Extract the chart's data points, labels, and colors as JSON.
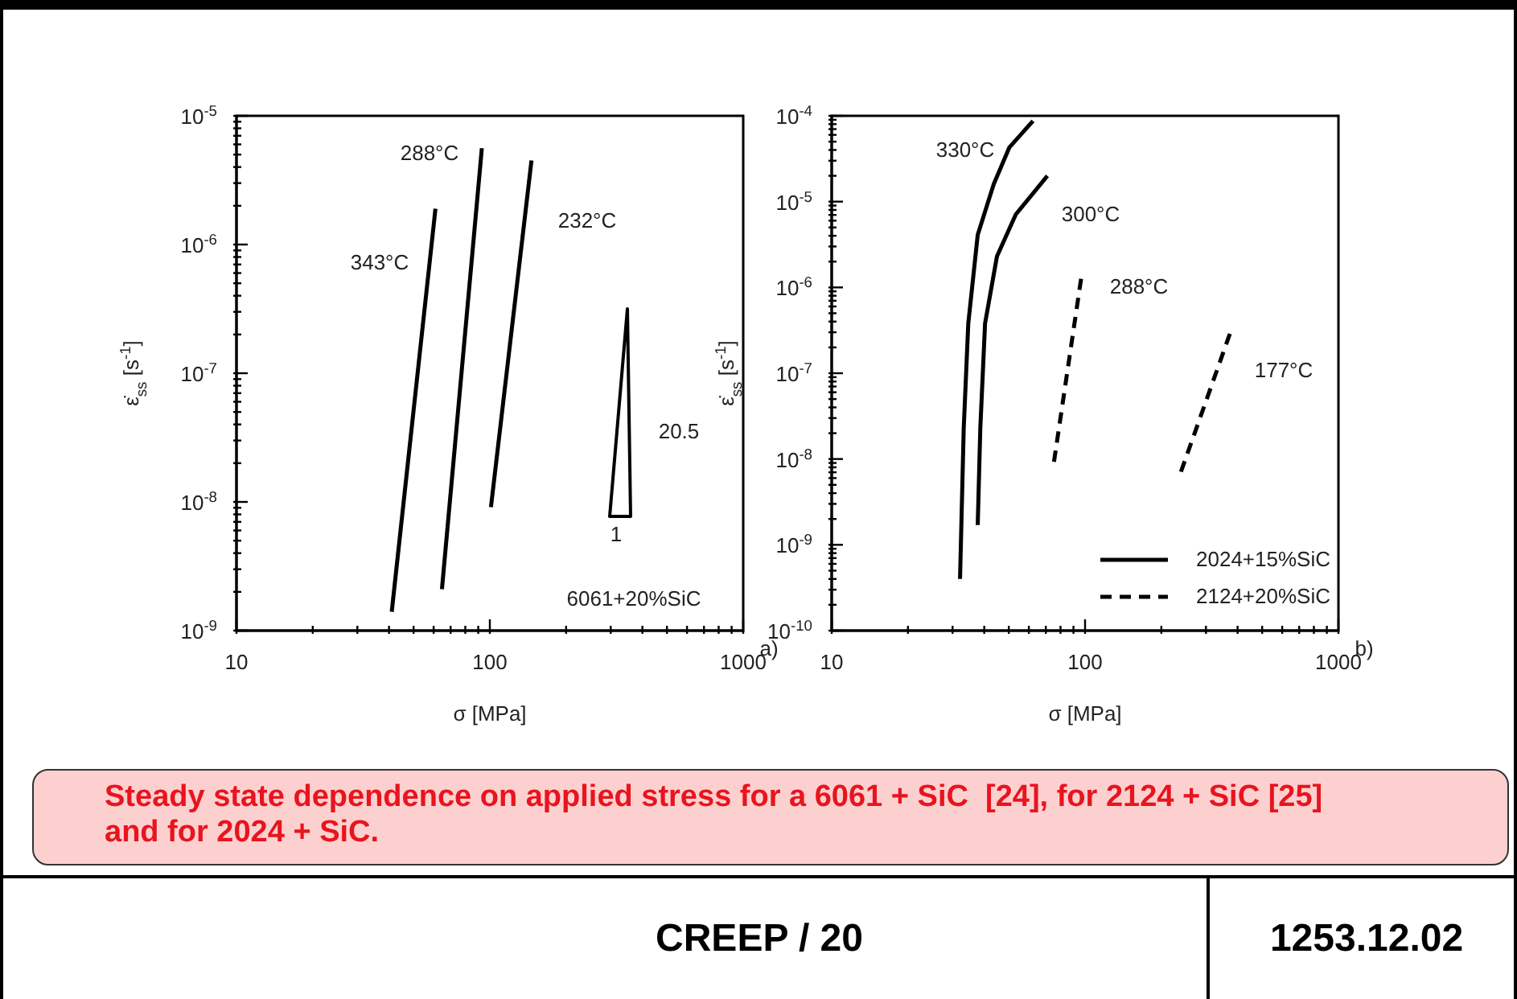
{
  "chart_data": [
    {
      "type": "line",
      "xlabel": "σ [MPa]",
      "ylabel": "ε̇$_{ss}$ [s$^{-1}$]",
      "log": "xy",
      "xlim": [
        10,
        1000
      ],
      "ylim": [
        1e-09,
        1e-05
      ],
      "xticks": [
        10,
        {
          "value": 20,
          "label": null
        },
        {
          "value": 30,
          "label": null
        },
        {
          "value": 40,
          "label": null
        },
        {
          "value": 50,
          "label": null
        },
        {
          "value": 60,
          "label": null
        },
        {
          "value": 70,
          "label": null
        },
        {
          "value": 80,
          "label": null
        },
        {
          "value": 90,
          "label": null
        },
        100,
        {
          "value": 200,
          "label": null
        },
        {
          "value": 300,
          "label": null
        },
        {
          "value": 400,
          "label": null
        },
        {
          "value": 500,
          "label": null
        },
        {
          "value": 600,
          "label": null
        },
        {
          "value": 700,
          "label": null
        },
        {
          "value": 800,
          "label": null
        },
        {
          "value": 900,
          "label": null
        },
        1000
      ],
      "yticks": [
        {
          "value": 1e-09,
          "label": "10$^{-9}$"
        },
        {
          "value": 2e-09,
          "label": null
        },
        {
          "value": 3e-09,
          "label": null
        },
        {
          "value": 4e-09,
          "label": null
        },
        {
          "value": 5e-09,
          "label": null
        },
        {
          "value": 6e-09,
          "label": null
        },
        {
          "value": 7e-09,
          "label": null
        },
        {
          "value": 8e-09,
          "label": null
        },
        {
          "value": 9e-09,
          "label": null
        },
        {
          "value": 1e-08,
          "label": "10$^{-8}$"
        },
        {
          "value": 2e-08,
          "label": null
        },
        {
          "value": 3e-08,
          "label": null
        },
        {
          "value": 4e-08,
          "label": null
        },
        {
          "value": 5e-08,
          "label": null
        },
        {
          "value": 6e-08,
          "label": null
        },
        {
          "value": 7e-08,
          "label": null
        },
        {
          "value": 8e-08,
          "label": null
        },
        {
          "value": 9e-08,
          "label": null
        },
        {
          "value": 1e-07,
          "label": "10$^{-7}$"
        },
        {
          "value": 2e-07,
          "label": null
        },
        {
          "value": 3e-07,
          "label": null
        },
        {
          "value": 4e-07,
          "label": null
        },
        {
          "value": 5e-07,
          "label": null
        },
        {
          "value": 6e-07,
          "label": null
        },
        {
          "value": 7e-07,
          "label": null
        },
        {
          "value": 8e-07,
          "label": null
        },
        {
          "value": 9e-07,
          "label": null
        },
        {
          "value": 1e-06,
          "label": "10$^{-6}$"
        },
        {
          "value": 2e-06,
          "label": null
        },
        {
          "value": 3e-06,
          "label": null
        },
        {
          "value": 4e-06,
          "label": null
        },
        {
          "value": 5e-06,
          "label": null
        },
        {
          "value": 6e-06,
          "label": null
        },
        {
          "value": 7e-06,
          "label": null
        },
        {
          "value": 8e-06,
          "label": null
        },
        {
          "value": 9e-06,
          "label": null
        },
        {
          "value": 1e-05,
          "label": "10$^{-5}$"
        }
      ],
      "series": [
        {
          "name": "343°C",
          "color": "#000000",
          "x": [
            41,
            61
          ],
          "values": [
            1.4e-09,
            1.9e-06
          ]
        },
        {
          "name": "288°C",
          "color": "#000000",
          "x": [
            64.7,
            93
          ],
          "values": [
            2.1e-09,
            5.6e-06
          ]
        },
        {
          "name": "232°C",
          "color": "#000000",
          "x": [
            101,
            146
          ],
          "values": [
            9.1e-09,
            4.5e-06
          ]
        }
      ],
      "annotations": [
        "20.5",
        "1",
        "6061+20%SiC",
        "a)"
      ]
    },
    {
      "type": "line",
      "xlabel": "σ [MPa]",
      "ylabel": "ε̇$_{ss}$ [s$^{-1}$]",
      "log": "xy",
      "xlim": [
        10,
        1000
      ],
      "ylim": [
        1e-10,
        0.0001
      ],
      "legend": "bottom right",
      "xticks": [
        10,
        {
          "value": 20,
          "label": null
        },
        {
          "value": 30,
          "label": null
        },
        {
          "value": 40,
          "label": null
        },
        {
          "value": 50,
          "label": null
        },
        {
          "value": 60,
          "label": null
        },
        {
          "value": 70,
          "label": null
        },
        {
          "value": 80,
          "label": null
        },
        {
          "value": 90,
          "label": null
        },
        100,
        {
          "value": 200,
          "label": null
        },
        {
          "value": 300,
          "label": null
        },
        {
          "value": 400,
          "label": null
        },
        {
          "value": 500,
          "label": null
        },
        {
          "value": 600,
          "label": null
        },
        {
          "value": 700,
          "label": null
        },
        {
          "value": 800,
          "label": null
        },
        {
          "value": 900,
          "label": null
        },
        1000
      ],
      "yticks": [
        {
          "value": 1e-10,
          "label": "10$^{-10}$"
        },
        {
          "value": 2e-10,
          "label": null
        },
        {
          "value": 3e-10,
          "label": null
        },
        {
          "value": 4e-10,
          "label": null
        },
        {
          "value": 5e-10,
          "label": null
        },
        {
          "value": 6e-10,
          "label": null
        },
        {
          "value": 7e-10,
          "label": null
        },
        {
          "value": 8e-10,
          "label": null
        },
        {
          "value": 9e-10,
          "label": null
        },
        {
          "value": 1e-09,
          "label": "10$^{-9}$"
        },
        {
          "value": 2e-09,
          "label": null
        },
        {
          "value": 3e-09,
          "label": null
        },
        {
          "value": 4e-09,
          "label": null
        },
        {
          "value": 5e-09,
          "label": null
        },
        {
          "value": 6e-09,
          "label": null
        },
        {
          "value": 7e-09,
          "label": null
        },
        {
          "value": 8e-09,
          "label": null
        },
        {
          "value": 9e-09,
          "label": null
        },
        {
          "value": 1e-08,
          "label": "10$^{-8}$"
        },
        {
          "value": 2e-08,
          "label": null
        },
        {
          "value": 3e-08,
          "label": null
        },
        {
          "value": 4e-08,
          "label": null
        },
        {
          "value": 5e-08,
          "label": null
        },
        {
          "value": 6e-08,
          "label": null
        },
        {
          "value": 7e-08,
          "label": null
        },
        {
          "value": 8e-08,
          "label": null
        },
        {
          "value": 9e-08,
          "label": null
        },
        {
          "value": 1e-07,
          "label": "10$^{-7}$"
        },
        {
          "value": 2e-07,
          "label": null
        },
        {
          "value": 3e-07,
          "label": null
        },
        {
          "value": 4e-07,
          "label": null
        },
        {
          "value": 5e-07,
          "label": null
        },
        {
          "value": 6e-07,
          "label": null
        },
        {
          "value": 7e-07,
          "label": null
        },
        {
          "value": 8e-07,
          "label": null
        },
        {
          "value": 9e-07,
          "label": null
        },
        {
          "value": 1e-06,
          "label": "10$^{-6}$"
        },
        {
          "value": 2e-06,
          "label": null
        },
        {
          "value": 3e-06,
          "label": null
        },
        {
          "value": 4e-06,
          "label": null
        },
        {
          "value": 5e-06,
          "label": null
        },
        {
          "value": 6e-06,
          "label": null
        },
        {
          "value": 7e-06,
          "label": null
        },
        {
          "value": 8e-06,
          "label": null
        },
        {
          "value": 9e-06,
          "label": null
        },
        {
          "value": 1e-05,
          "label": "10$^{-5}$"
        },
        {
          "value": 2e-05,
          "label": null
        },
        {
          "value": 3e-05,
          "label": null
        },
        {
          "value": 4e-05,
          "label": null
        },
        {
          "value": 5e-05,
          "label": null
        },
        {
          "value": 6e-05,
          "label": null
        },
        {
          "value": 7e-05,
          "label": null
        },
        {
          "value": 8e-05,
          "label": null
        },
        {
          "value": 9e-05,
          "label": null
        },
        {
          "value": 0.0001,
          "label": "10$^{-4}$"
        }
      ],
      "series": [
        {
          "name": "2024+15%SiC",
          "color": "#000000",
          "line_style": "solid",
          "x": [
            32.1,
            33.2,
            34.6,
            37.7,
            43.6,
            50.3,
            62.3
          ],
          "values": [
            4e-10,
            2.3e-08,
            3.8e-07,
            4.1e-06,
            1.6e-05,
            4.3e-05,
            8.7e-05
          ]
        },
        {
          "color": "#000000",
          "line_style": "solid",
          "x": [
            37.7,
            38.6,
            40.3,
            44.9,
            53.3,
            71
          ],
          "values": [
            1.7e-09,
            2.3e-08,
            3.8e-07,
            2.3e-06,
            7.1e-06,
            2e-05
          ]
        },
        {
          "name": "2124+20%SiC",
          "color": "#000000",
          "line_style": "dashed",
          "x": [
            75.4,
            96.6
          ],
          "values": [
            9.3e-09,
            1.3e-06
          ]
        },
        {
          "color": "#000000",
          "line_style": "dashed",
          "x": [
            239,
            379
          ],
          "values": [
            7.1e-09,
            3.3e-07
          ]
        }
      ],
      "annotations": [
        "330°C",
        "300°C",
        "288°C",
        "177°C",
        "b)"
      ]
    },
    {
      "type": "other",
      "annotations": [
        "Steady state dependence on applied stress for a 6061 + SiC  [24], for 2124 + SiC [25] and for 2024 + SiC.",
        "CREEP / 20",
        "1253.12.02"
      ]
    }
  ]
}
